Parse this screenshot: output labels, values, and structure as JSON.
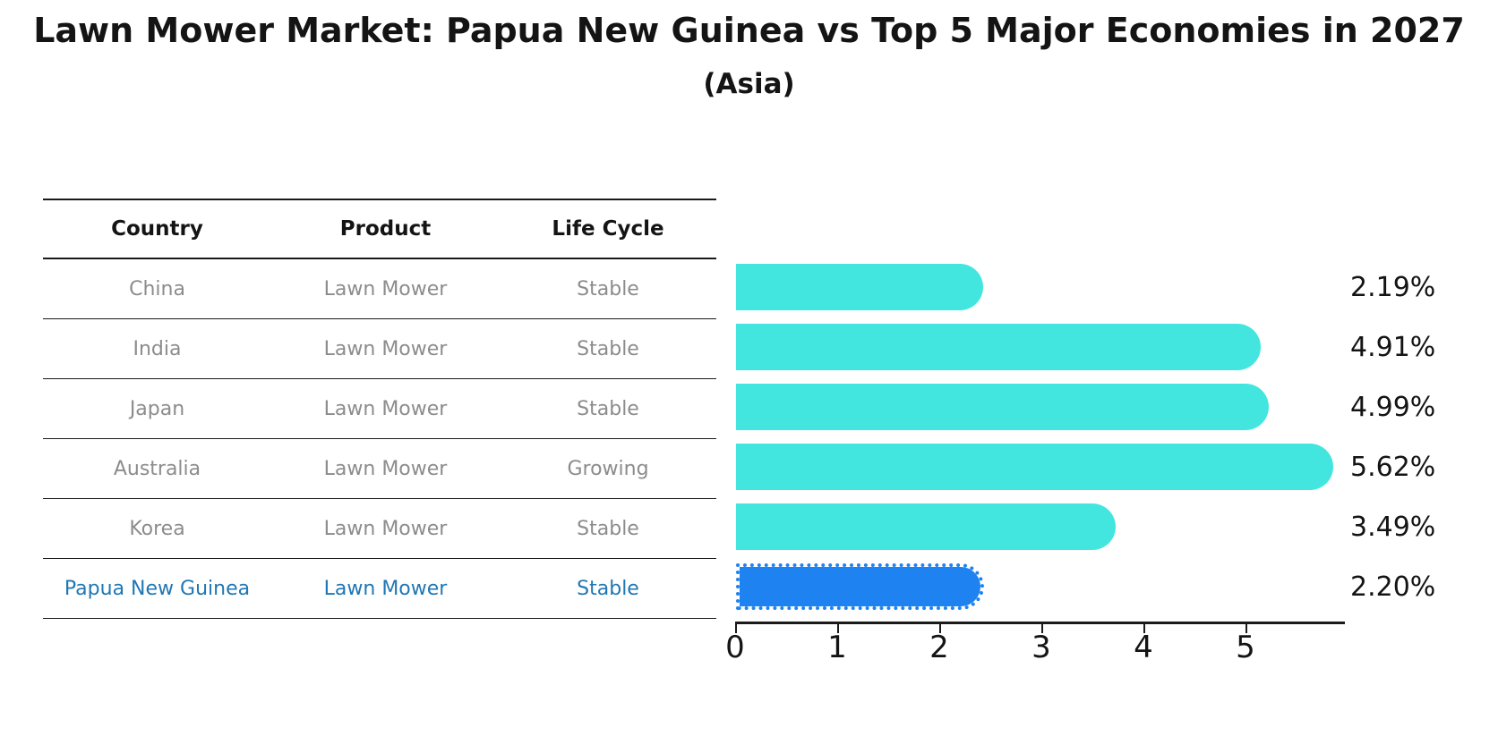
{
  "title": "Lawn Mower Market: Papua New Guinea vs Top 5 Major Economies in 2027",
  "subtitle": "(Asia)",
  "table": {
    "headers": [
      "Country",
      "Product",
      "Life Cycle"
    ],
    "rows": [
      {
        "country": "China",
        "product": "Lawn Mower",
        "life_cycle": "Stable",
        "highlighted": false
      },
      {
        "country": "India",
        "product": "Lawn Mower",
        "life_cycle": "Stable",
        "highlighted": false
      },
      {
        "country": "Japan",
        "product": "Lawn Mower",
        "life_cycle": "Stable",
        "highlighted": false
      },
      {
        "country": "Australia",
        "product": "Lawn Mower",
        "life_cycle": "Growing",
        "highlighted": false
      },
      {
        "country": "Korea",
        "product": "Lawn Mower",
        "life_cycle": "Stable",
        "highlighted": false
      },
      {
        "country": "Papua New Guinea",
        "product": "Lawn Mower",
        "life_cycle": "Stable",
        "highlighted": true
      }
    ]
  },
  "chart_data": {
    "type": "bar",
    "orientation": "horizontal",
    "title": "Lawn Mower Market: Papua New Guinea vs Top 5 Major Economies in 2027",
    "subtitle": "(Asia)",
    "categories": [
      "China",
      "India",
      "Japan",
      "Australia",
      "Korea",
      "Papua New Guinea"
    ],
    "values": [
      2.19,
      4.91,
      4.99,
      5.62,
      3.49,
      2.2
    ],
    "value_labels": [
      "2.19%",
      "4.91%",
      "4.99%",
      "5.62%",
      "3.49%",
      "2.20%"
    ],
    "x_ticks": [
      0,
      1,
      2,
      3,
      4,
      5
    ],
    "xlim": [
      0,
      5.96
    ],
    "grid": false,
    "legend": "none",
    "bar_color": "#43e6df",
    "highlight_color": "#1e82f0",
    "highlight_index": 5,
    "highlight_border_style": "dotted",
    "highlight_text_color": "#1f77b4",
    "row_text_color": "#8c8c8c"
  }
}
